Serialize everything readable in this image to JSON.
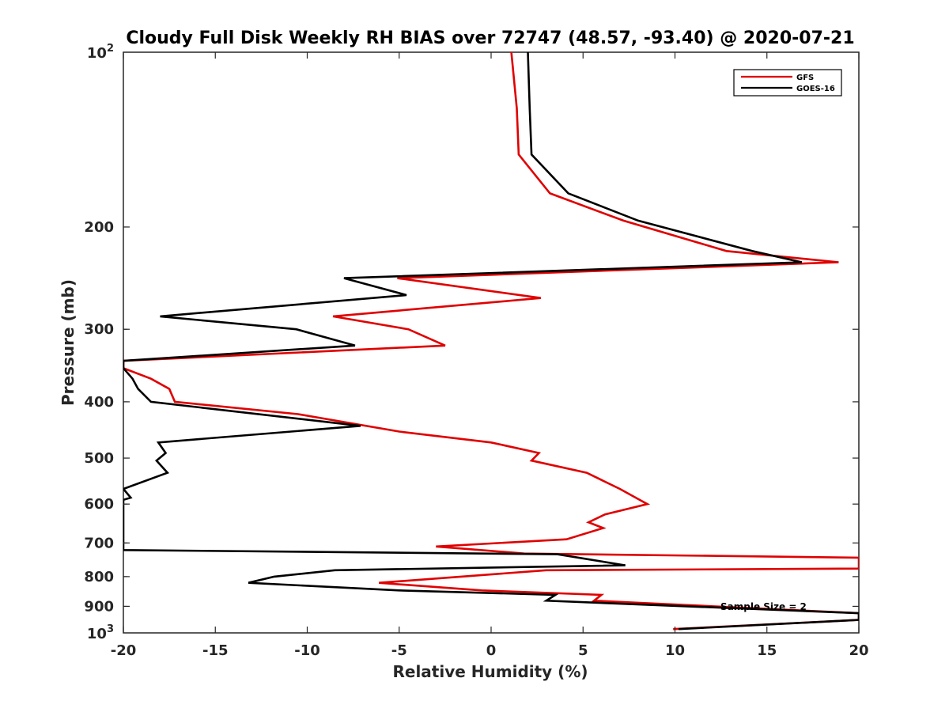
{
  "chart_data": {
    "type": "line",
    "title": "Cloudy Full Disk Weekly RH BIAS over 72747 (48.57, -93.40) @ 2020-07-21",
    "xlabel": "Relative Humidity (%)",
    "ylabel": "Pressure (mb)",
    "xlim": [
      -20,
      20
    ],
    "ylim": [
      100,
      1000
    ],
    "yscale": "log",
    "y_reversed": true,
    "x_ticks": [
      "-20",
      "-15",
      "-10",
      "-5",
      "0",
      "5",
      "10",
      "15",
      "20"
    ],
    "y_ticks": [
      "200",
      "300",
      "400",
      "500",
      "600",
      "700",
      "800",
      "900"
    ],
    "y_edge_ticks": {
      "top_base": "10",
      "top_exp": "2",
      "bottom_base": "10",
      "bottom_exp": "3"
    },
    "legend_position": "top-right",
    "annotation": "Sample Size = 2",
    "series": [
      {
        "name": "GFS",
        "color": "#e00000",
        "points": [
          [
            1.1,
            100
          ],
          [
            1.4,
            125
          ],
          [
            1.5,
            150
          ],
          [
            3.2,
            175
          ],
          [
            7.2,
            195
          ],
          [
            12.8,
            220
          ],
          [
            18.9,
            230
          ],
          [
            -5.1,
            245
          ],
          [
            2.7,
            265
          ],
          [
            -8.6,
            285
          ],
          [
            -4.5,
            300
          ],
          [
            -2.5,
            320
          ],
          [
            -20,
            340
          ],
          [
            -20,
            350
          ],
          [
            -18.5,
            365
          ],
          [
            -17.5,
            380
          ],
          [
            -17.2,
            400
          ],
          [
            -10.5,
            420
          ],
          [
            -5.0,
            450
          ],
          [
            0,
            470
          ],
          [
            2.6,
            490
          ],
          [
            2.2,
            505
          ],
          [
            5.2,
            530
          ],
          [
            7.0,
            565
          ],
          [
            8.5,
            600
          ],
          [
            6.2,
            625
          ],
          [
            5.3,
            645
          ],
          [
            6.1,
            660
          ],
          [
            4.1,
            690
          ],
          [
            -3.0,
            710
          ],
          [
            1.8,
            730
          ],
          [
            20.0,
            742
          ],
          [
            20.0,
            775
          ],
          [
            3.0,
            780
          ],
          [
            -6.1,
            820
          ],
          [
            -0.5,
            845
          ],
          [
            6.0,
            860
          ],
          [
            5.6,
            880
          ],
          [
            20.0,
            925
          ],
          [
            20.0,
            950
          ],
          [
            9.9,
            985
          ]
        ]
      },
      {
        "name": "GOES-16",
        "color": "#000000",
        "points": [
          [
            2.0,
            100
          ],
          [
            2.1,
            125
          ],
          [
            2.2,
            150
          ],
          [
            4.2,
            175
          ],
          [
            8.0,
            195
          ],
          [
            14.2,
            220
          ],
          [
            16.9,
            230
          ],
          [
            -8.0,
            245
          ],
          [
            -4.6,
            262
          ],
          [
            -18.0,
            285
          ],
          [
            -10.6,
            300
          ],
          [
            -7.4,
            320
          ],
          [
            -20,
            340
          ],
          [
            -20,
            350
          ],
          [
            -19.5,
            365
          ],
          [
            -19.2,
            380
          ],
          [
            -18.5,
            400
          ],
          [
            -7.1,
            440
          ],
          [
            -18.1,
            470
          ],
          [
            -17.7,
            490
          ],
          [
            -18.2,
            505
          ],
          [
            -17.6,
            530
          ],
          [
            -20,
            565
          ],
          [
            -19.6,
            585
          ],
          [
            -20,
            590
          ],
          [
            -20,
            720
          ],
          [
            3.6,
            732
          ],
          [
            7.3,
            765
          ],
          [
            -8.5,
            780
          ],
          [
            -11.8,
            800
          ],
          [
            -13.2,
            820
          ],
          [
            -5.0,
            845
          ],
          [
            3.5,
            860
          ],
          [
            3.0,
            880
          ],
          [
            20.0,
            925
          ],
          [
            20.0,
            950
          ],
          [
            10.2,
            985
          ]
        ]
      }
    ]
  }
}
